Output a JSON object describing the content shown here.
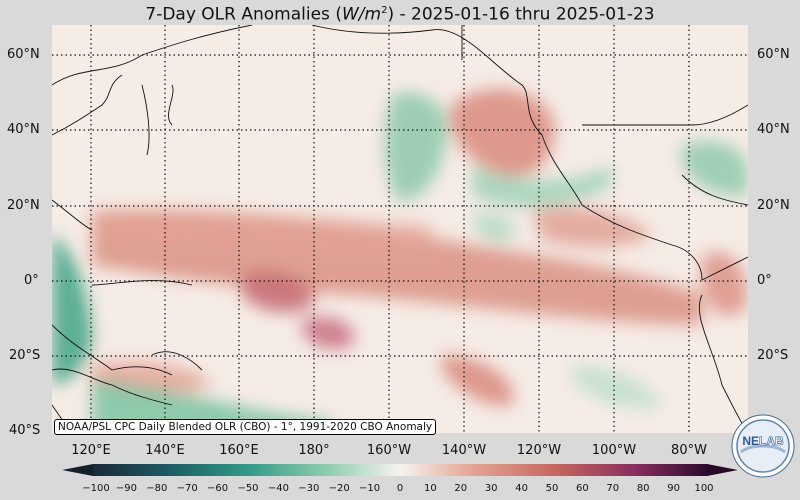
{
  "title": {
    "prefix": "7-Day OLR Anomalies (",
    "var": "W/m",
    "exp": "2",
    "suffix": ") - 2025-01-16 thru 2025-01-23"
  },
  "lat_labels": [
    "60°N",
    "40°N",
    "20°N",
    "0°",
    "20°S",
    "40°S"
  ],
  "lat_labels_right": [
    "60°N",
    "40°N",
    "20°N",
    "0°",
    "20°S"
  ],
  "lon_labels": [
    "120°E",
    "140°E",
    "160°E",
    "180°",
    "160°W",
    "140°W",
    "120°W",
    "100°W",
    "80°W"
  ],
  "source": "NOAA/PSL CPC Daily Blended OLR (CBO) - 1°, 1991-2020 CBO Anomaly",
  "colorbar_ticks": [
    "−100",
    "−90",
    "−80",
    "−70",
    "−60",
    "−50",
    "−40",
    "−30",
    "−20",
    "−10",
    "0",
    "10",
    "20",
    "30",
    "40",
    "50",
    "60",
    "70",
    "80",
    "90",
    "100"
  ],
  "colors": {
    "negative_strong": "#1a3a4a",
    "negative": "#3aa88a",
    "neutral": "#f7f3ef",
    "positive": "#d4766a",
    "positive_strong": "#3a0a3a"
  },
  "logo_text": {
    "a": "NE",
    "b": "LAB"
  }
}
